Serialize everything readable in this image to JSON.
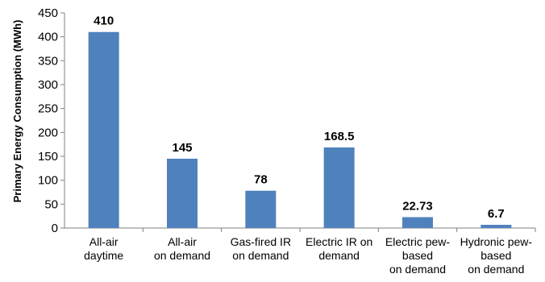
{
  "chart_data": {
    "type": "bar",
    "title": "",
    "xlabel": "",
    "ylabel": "Primary Energy Consumption (MWh)",
    "ylim": [
      0,
      450
    ],
    "yticks": [
      0,
      50,
      100,
      150,
      200,
      250,
      300,
      350,
      400,
      450
    ],
    "grid": false,
    "legend": "none",
    "categories": [
      [
        "All-air",
        "daytime"
      ],
      [
        "All-air",
        "on demand"
      ],
      [
        "Gas-fired IR",
        "on demand"
      ],
      [
        "Electric  IR on",
        "demand"
      ],
      [
        "Electric pew-",
        "based",
        "on demand"
      ],
      [
        "Hydronic pew-",
        "based",
        "on demand"
      ]
    ],
    "values": [
      410,
      145,
      78,
      168.5,
      22.73,
      6.7
    ],
    "data_labels": [
      "410",
      "145",
      "78",
      "168.5",
      "22.73",
      "6.7"
    ],
    "bar_color": "#4F81BD",
    "axis_color": "#808080"
  }
}
